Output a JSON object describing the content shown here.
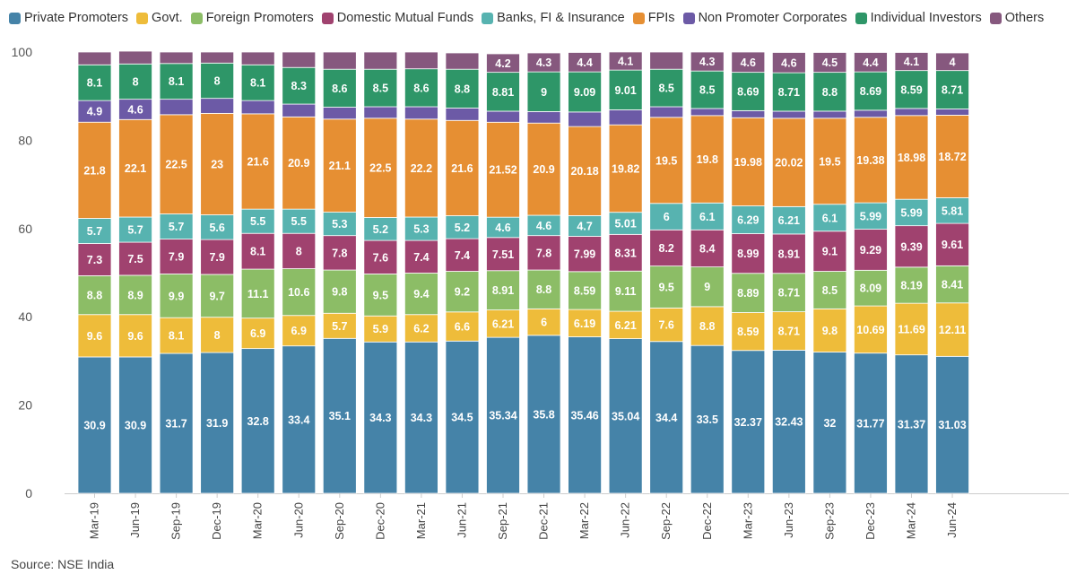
{
  "source_label": "Source: NSE India",
  "chart_data": {
    "type": "bar",
    "stacked": true,
    "ylim": [
      0,
      100
    ],
    "yticks": [
      0,
      20,
      40,
      60,
      80,
      100
    ],
    "grid": false,
    "legend_placement": "top-left",
    "categories": [
      "Mar-19",
      "Jun-19",
      "Sep-19",
      "Dec-19",
      "Mar-20",
      "Jun-20",
      "Sep-20",
      "Dec-20",
      "Mar-21",
      "Jun-21",
      "Sep-21",
      "Dec-21",
      "Mar-22",
      "Jun-22",
      "Sep-22",
      "Dec-22",
      "Mar-23",
      "Jun-23",
      "Sep-23",
      "Dec-23",
      "Mar-24",
      "Jun-24"
    ],
    "series": [
      {
        "name": "Private Promoters",
        "color": "#4583a8",
        "values": [
          30.9,
          30.9,
          31.7,
          31.9,
          32.8,
          33.4,
          35.1,
          34.3,
          34.3,
          34.5,
          35.34,
          35.8,
          35.46,
          35.04,
          34.4,
          33.5,
          32.37,
          32.43,
          32,
          31.77,
          31.37,
          31.03
        ],
        "labels": [
          "30.9",
          "30.9",
          "31.7",
          "31.9",
          "32.8",
          "33.4",
          "35.1",
          "34.3",
          "34.3",
          "34.5",
          "35.34",
          "35.8",
          "35.46",
          "35.04",
          "34.4",
          "33.5",
          "32.37",
          "32.43",
          "32",
          "31.77",
          "31.37",
          "31.03"
        ]
      },
      {
        "name": "Govt.",
        "color": "#eebc3a",
        "values": [
          9.6,
          9.6,
          8.1,
          8,
          6.9,
          6.9,
          5.7,
          5.9,
          6.2,
          6.6,
          6.21,
          6,
          6.19,
          6.21,
          7.6,
          8.8,
          8.59,
          8.71,
          9.8,
          10.69,
          11.69,
          12.11
        ],
        "labels": [
          "9.6",
          "9.6",
          "8.1",
          "8",
          "6.9",
          "6.9",
          "5.7",
          "5.9",
          "6.2",
          "6.6",
          "6.21",
          "6",
          "6.19",
          "6.21",
          "7.6",
          "8.8",
          "8.59",
          "8.71",
          "9.8",
          "10.69",
          "11.69",
          "12.11"
        ]
      },
      {
        "name": "Foreign Promoters",
        "color": "#8cbd66",
        "values": [
          8.8,
          8.9,
          9.9,
          9.7,
          11.1,
          10.6,
          9.8,
          9.5,
          9.4,
          9.2,
          8.91,
          8.8,
          8.59,
          9.11,
          9.5,
          9,
          8.89,
          8.71,
          8.5,
          8.09,
          8.19,
          8.41
        ],
        "labels": [
          "8.8",
          "8.9",
          "9.9",
          "9.7",
          "11.1",
          "10.6",
          "9.8",
          "9.5",
          "9.4",
          "9.2",
          "8.91",
          "8.8",
          "8.59",
          "9.11",
          "9.5",
          "9",
          "8.89",
          "8.71",
          "8.5",
          "8.09",
          "8.19",
          "8.41"
        ]
      },
      {
        "name": "Domestic Mutual Funds",
        "color": "#a0426f",
        "values": [
          7.3,
          7.5,
          7.9,
          7.9,
          8.1,
          8,
          7.8,
          7.6,
          7.4,
          7.4,
          7.51,
          7.8,
          7.99,
          8.31,
          8.2,
          8.4,
          8.99,
          8.91,
          9.1,
          9.29,
          9.39,
          9.61
        ],
        "labels": [
          "7.3",
          "7.5",
          "7.9",
          "7.9",
          "8.1",
          "8",
          "7.8",
          "7.6",
          "7.4",
          "7.4",
          "7.51",
          "7.8",
          "7.99",
          "8.31",
          "8.2",
          "8.4",
          "8.99",
          "8.91",
          "9.1",
          "9.29",
          "9.39",
          "9.61"
        ]
      },
      {
        "name": "Banks, FI & Insurance",
        "color": "#57b3b0",
        "values": [
          5.7,
          5.7,
          5.7,
          5.6,
          5.5,
          5.5,
          5.3,
          5.2,
          5.3,
          5.2,
          4.6,
          4.6,
          4.7,
          5.01,
          6,
          6.1,
          6.29,
          6.21,
          6.1,
          5.99,
          5.99,
          5.81
        ],
        "labels": [
          "5.7",
          "5.7",
          "5.7",
          "5.6",
          "5.5",
          "5.5",
          "5.3",
          "5.2",
          "5.3",
          "5.2",
          "4.6",
          "4.6",
          "4.7",
          "5.01",
          "6",
          "6.1",
          "6.29",
          "6.21",
          "6.1",
          "5.99",
          "5.99",
          "5.81"
        ]
      },
      {
        "name": "FPIs",
        "color": "#e68f33",
        "values": [
          21.8,
          22.1,
          22.5,
          23,
          21.6,
          20.9,
          21.1,
          22.5,
          22.2,
          21.6,
          21.52,
          20.9,
          20.18,
          19.82,
          19.5,
          19.8,
          19.98,
          20.02,
          19.5,
          19.38,
          18.98,
          18.72
        ],
        "labels": [
          "21.8",
          "22.1",
          "22.5",
          "23",
          "21.6",
          "20.9",
          "21.1",
          "22.5",
          "22.2",
          "21.6",
          "21.52",
          "20.9",
          "20.18",
          "19.82",
          "19.5",
          "19.8",
          "19.98",
          "20.02",
          "19.5",
          "19.38",
          "18.98",
          "18.72"
        ]
      },
      {
        "name": "Non Promoter Corporates",
        "color": "#6c5aa6",
        "values": [
          4.9,
          4.6,
          3.5,
          3.4,
          3,
          2.9,
          2.7,
          2.6,
          2.8,
          2.8,
          2.5,
          2.6,
          3.3,
          3.4,
          2.4,
          1.6,
          1.6,
          1.6,
          1.6,
          1.6,
          1.6,
          1.4
        ],
        "labels": [
          "4.9",
          "4.6",
          "",
          "",
          "",
          "",
          "",
          "",
          "",
          "",
          "",
          "",
          "",
          "",
          "",
          "",
          "",
          "",
          "",
          "",
          "",
          ""
        ]
      },
      {
        "name": "Individual Investors",
        "color": "#2e9668",
        "values": [
          8.1,
          8,
          8.1,
          8,
          8.1,
          8.3,
          8.6,
          8.5,
          8.6,
          8.8,
          8.81,
          9,
          9.09,
          9.01,
          8.5,
          8.5,
          8.69,
          8.71,
          8.8,
          8.69,
          8.59,
          8.71
        ],
        "labels": [
          "8.1",
          "8",
          "8.1",
          "8",
          "8.1",
          "8.3",
          "8.6",
          "8.5",
          "8.6",
          "8.8",
          "8.81",
          "9",
          "9.09",
          "9.01",
          "8.5",
          "8.5",
          "8.69",
          "8.71",
          "8.8",
          "8.69",
          "8.59",
          "8.71"
        ]
      },
      {
        "name": "Others",
        "color": "#86587e",
        "values": [
          2.9,
          2.9,
          2.6,
          2.5,
          2.9,
          3.5,
          3.9,
          3.9,
          3.8,
          3.7,
          4.2,
          4.3,
          4.4,
          4.1,
          3.9,
          4.3,
          4.6,
          4.6,
          4.5,
          4.4,
          4.1,
          4
        ],
        "labels": [
          "",
          "",
          "",
          "",
          "",
          "",
          "",
          "",
          "",
          "",
          "4.2",
          "4.3",
          "4.4",
          "4.1",
          "",
          "4.3",
          "4.6",
          "4.6",
          "4.5",
          "4.4",
          "4.1",
          "4"
        ]
      }
    ]
  }
}
